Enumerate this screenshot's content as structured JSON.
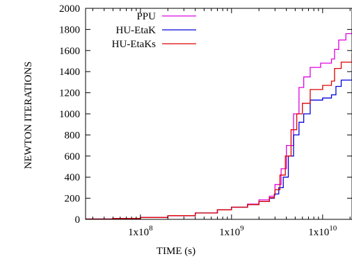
{
  "chart_data": {
    "type": "line",
    "title": "",
    "xlabel": "TIME (s)",
    "ylabel": "NEWTON ITERATIONS",
    "x_scale": "log",
    "xlim": [
      25000000,
      21000000000
    ],
    "ylim": [
      0,
      2000
    ],
    "x_ticks": [
      {
        "value": 100000000,
        "mantissa": "1x10",
        "exponent": "8"
      },
      {
        "value": 1000000000,
        "mantissa": "1x10",
        "exponent": "9"
      },
      {
        "value": 10000000000,
        "mantissa": "1x10",
        "exponent": "10"
      }
    ],
    "y_ticks": [
      0,
      200,
      400,
      600,
      800,
      1000,
      1200,
      1400,
      1600,
      1800,
      2000
    ],
    "grid": false,
    "legend_position": "top-left",
    "series": [
      {
        "name": "PPU",
        "color": "#e000e0",
        "points": [
          [
            25000000,
            3
          ],
          [
            50000000,
            8
          ],
          [
            100000000,
            18
          ],
          [
            200000000,
            35
          ],
          [
            400000000,
            60
          ],
          [
            700000000,
            90
          ],
          [
            1000000000,
            115
          ],
          [
            1500000000,
            145
          ],
          [
            2000000000,
            185
          ],
          [
            2600000000,
            220
          ],
          [
            2950000000,
            240
          ],
          [
            3000000000,
            330
          ],
          [
            3500000000,
            480
          ],
          [
            4000000000,
            700
          ],
          [
            4800000000,
            1000
          ],
          [
            5500000000,
            1250
          ],
          [
            6200000000,
            1350
          ],
          [
            7300000000,
            1440
          ],
          [
            9500000000,
            1480
          ],
          [
            12500000000,
            1520
          ],
          [
            13500000000,
            1610
          ],
          [
            15000000000,
            1700
          ],
          [
            18000000000,
            1760
          ],
          [
            21000000000,
            1800
          ]
        ]
      },
      {
        "name": "HU-EtaK",
        "color": "#0000dd",
        "points": [
          [
            25000000,
            3
          ],
          [
            50000000,
            8
          ],
          [
            100000000,
            18
          ],
          [
            200000000,
            35
          ],
          [
            400000000,
            60
          ],
          [
            700000000,
            90
          ],
          [
            1000000000,
            115
          ],
          [
            1500000000,
            140
          ],
          [
            2000000000,
            170
          ],
          [
            2600000000,
            200
          ],
          [
            2950000000,
            230
          ],
          [
            3000000000,
            240
          ],
          [
            3300000000,
            300
          ],
          [
            3700000000,
            400
          ],
          [
            4200000000,
            600
          ],
          [
            4800000000,
            800
          ],
          [
            5500000000,
            920
          ],
          [
            6200000000,
            1000
          ],
          [
            7300000000,
            1130
          ],
          [
            10000000000,
            1150
          ],
          [
            12500000000,
            1180
          ],
          [
            14000000000,
            1260
          ],
          [
            16000000000,
            1320
          ],
          [
            21000000000,
            1390
          ]
        ]
      },
      {
        "name": "HU-EtaKs",
        "color": "#dd0000",
        "points": [
          [
            25000000,
            3
          ],
          [
            50000000,
            8
          ],
          [
            100000000,
            18
          ],
          [
            200000000,
            35
          ],
          [
            400000000,
            60
          ],
          [
            700000000,
            90
          ],
          [
            1000000000,
            115
          ],
          [
            1500000000,
            140
          ],
          [
            2000000000,
            170
          ],
          [
            2600000000,
            205
          ],
          [
            2950000000,
            240
          ],
          [
            3000000000,
            280
          ],
          [
            3400000000,
            420
          ],
          [
            3900000000,
            600
          ],
          [
            4500000000,
            850
          ],
          [
            5200000000,
            1000
          ],
          [
            6000000000,
            1100
          ],
          [
            7300000000,
            1230
          ],
          [
            10000000000,
            1270
          ],
          [
            12500000000,
            1310
          ],
          [
            13500000000,
            1430
          ],
          [
            16000000000,
            1490
          ],
          [
            21000000000,
            1570
          ]
        ]
      }
    ]
  }
}
